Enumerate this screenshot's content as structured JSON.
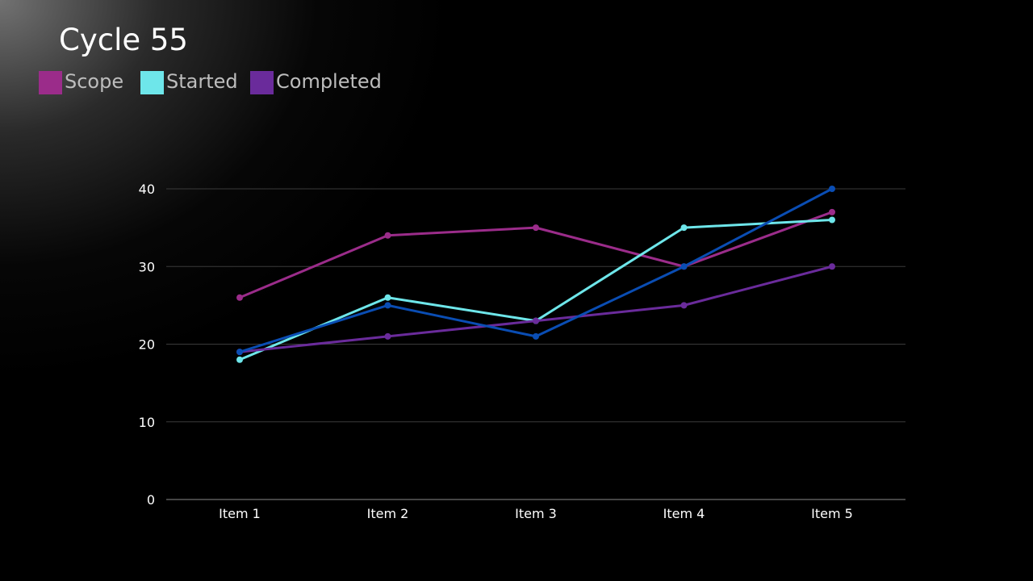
{
  "title": "Cycle 55",
  "legend": [
    {
      "label": "Scope",
      "color": "#9b2c8a"
    },
    {
      "label": "Started",
      "color": "#6ee6ea"
    },
    {
      "label": "Completed",
      "color": "#6a2b9b"
    }
  ],
  "chart_data": {
    "type": "line",
    "title": "Cycle 55",
    "xlabel": "",
    "ylabel": "",
    "categories": [
      "Item 1",
      "Item 2",
      "Item 3",
      "Item 4",
      "Item 5"
    ],
    "ylim": [
      0,
      40
    ],
    "yticks": [
      0,
      10,
      20,
      30,
      40
    ],
    "grid": true,
    "legend_position": "top-left",
    "series": [
      {
        "name": "Scope",
        "color": "#9b2c8a",
        "values": [
          26,
          34,
          35,
          30,
          37
        ]
      },
      {
        "name": "Started",
        "color": "#6ee6ea",
        "values": [
          18,
          26,
          23,
          35,
          36
        ]
      },
      {
        "name": "Completed",
        "color": "#6a2b9b",
        "values": [
          19,
          21,
          23,
          25,
          30
        ]
      },
      {
        "color": "#0a4db3",
        "values": [
          19,
          25,
          21,
          30,
          40
        ]
      }
    ]
  }
}
